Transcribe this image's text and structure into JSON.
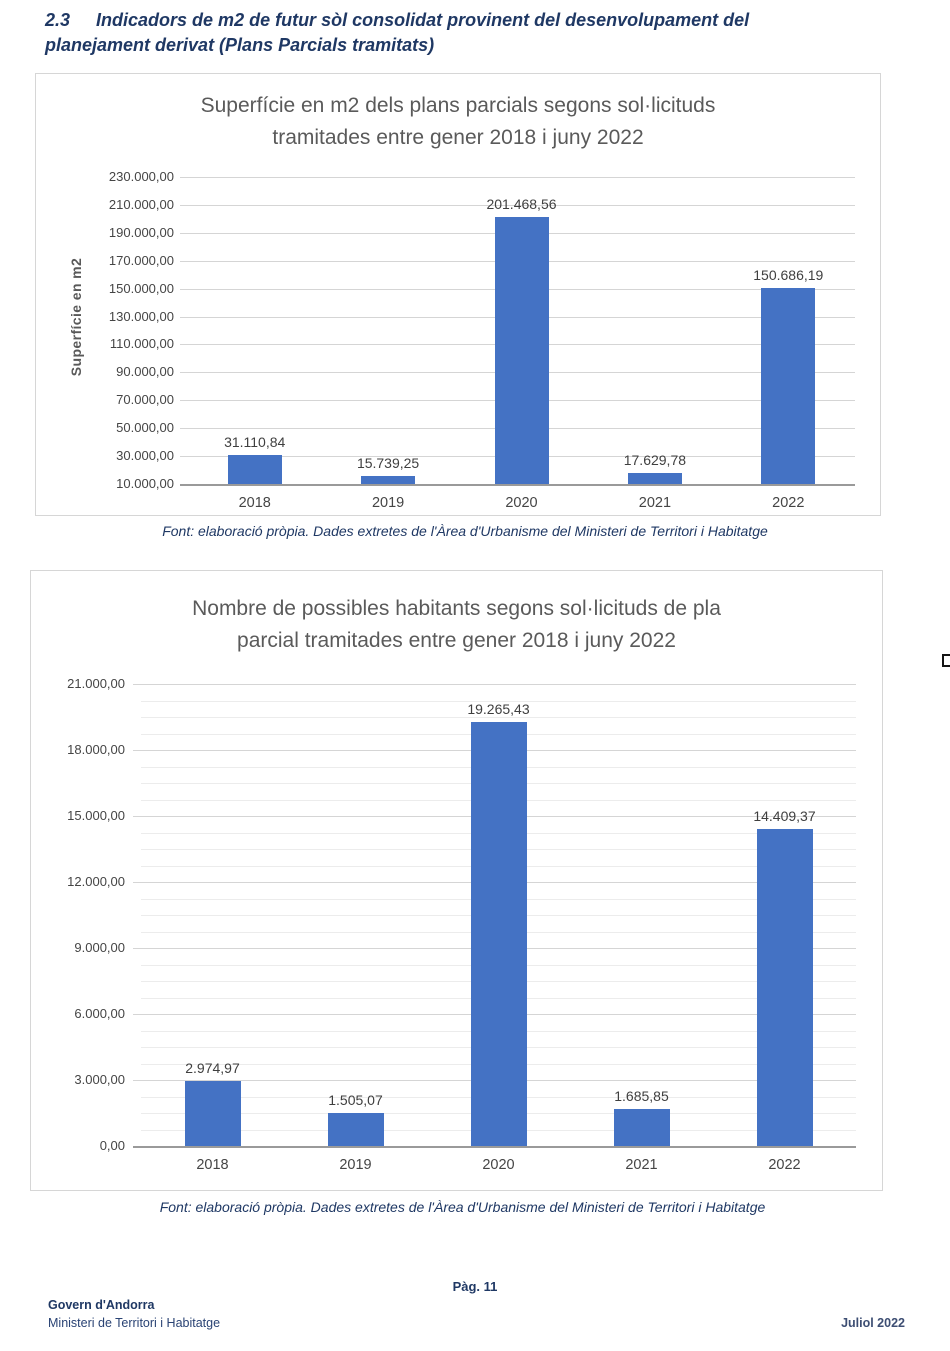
{
  "page": {
    "heading": {
      "number": "2.3",
      "line1": "Indicadors de m2 de futur sòl consolidat provinent del desenvolupament del",
      "line2": "planejament derivat (Plans Parcials tramitats)",
      "full_text": "2.3 Indicadors de m2 de futur sòl consolidat provinent del desenvolupament del planejament derivat (Plans Parcials tramitats)"
    },
    "footer": {
      "page_label": "Pàg. 11",
      "org": "Govern d'Andorra",
      "dept": "Ministeri de Territori i Habitatge",
      "date": "Juliol 2022"
    }
  },
  "colors": {
    "bar": "#4472C4",
    "heading_navy": "#1F3864",
    "chart_title_gray": "#5A5A5A",
    "tick_gray": "#454545",
    "grid_major": "#D5D5D5",
    "grid_minor": "#ECECEC",
    "axis_line": "#9A9A9A",
    "chart_border": "#D6D6D6"
  },
  "chart_data": [
    {
      "type": "bar",
      "title": "Superfície en m2 dels plans parcials segons sol·licituds tramitades entre gener 2018 i juny 2022",
      "title_lines": [
        "Superfície en m2 dels plans parcials segons sol·licituds",
        "tramitades entre gener 2018 i juny 2022"
      ],
      "ylabel": "Superfície en m2",
      "xlabel": "",
      "categories": [
        "2018",
        "2019",
        "2020",
        "2021",
        "2022"
      ],
      "values": [
        31110.84,
        15739.25,
        201468.56,
        17629.78,
        150686.19
      ],
      "value_labels": [
        "31.110,84",
        "15.739,25",
        "201.468,56",
        "17.629,78",
        "150.686,19"
      ],
      "ylim": [
        10000,
        230000
      ],
      "ytick_step": 20000,
      "ytick_labels": [
        "230.000,00",
        "210.000,00",
        "190.000,00",
        "170.000,00",
        "150.000,00",
        "130.000,00",
        "110.000,00",
        "90.000,00",
        "70.000,00",
        "50.000,00",
        "30.000,00",
        "10.000,00"
      ],
      "grid": "major-horizontal",
      "legend": "none",
      "caption": "Font: elaboració pròpia. Dades extretes de l'Àrea d'Urbanisme del Ministeri de Territori i Habitatge"
    },
    {
      "type": "bar",
      "title": "Nombre de possibles habitants segons sol·licituds de pla parcial tramitades entre gener 2018 i juny 2022",
      "title_lines": [
        "Nombre de possibles habitants segons sol·licituds  de pla",
        "parcial tramitades entre gener 2018 i juny 2022"
      ],
      "ylabel": "",
      "xlabel": "",
      "categories": [
        "2018",
        "2019",
        "2020",
        "2021",
        "2022"
      ],
      "values": [
        2974.97,
        1505.07,
        19265.43,
        1685.85,
        14409.37
      ],
      "value_labels": [
        "2.974,97",
        "1.505,07",
        "19.265,43",
        "1.685,85",
        "14.409,37"
      ],
      "ylim": [
        0,
        21000
      ],
      "ytick_step": 3000,
      "ytick_minor_step": 750,
      "ytick_labels": [
        "21.000,00",
        "18.000,00",
        "15.000,00",
        "12.000,00",
        "9.000,00",
        "6.000,00",
        "3.000,00",
        "0,00"
      ],
      "grid": "major+minor-horizontal",
      "legend": "none",
      "caption": "Font: elaboració pròpia. Dades extretes de l'Àrea d'Urbanisme del Ministeri de Territori i Habitatge"
    }
  ]
}
